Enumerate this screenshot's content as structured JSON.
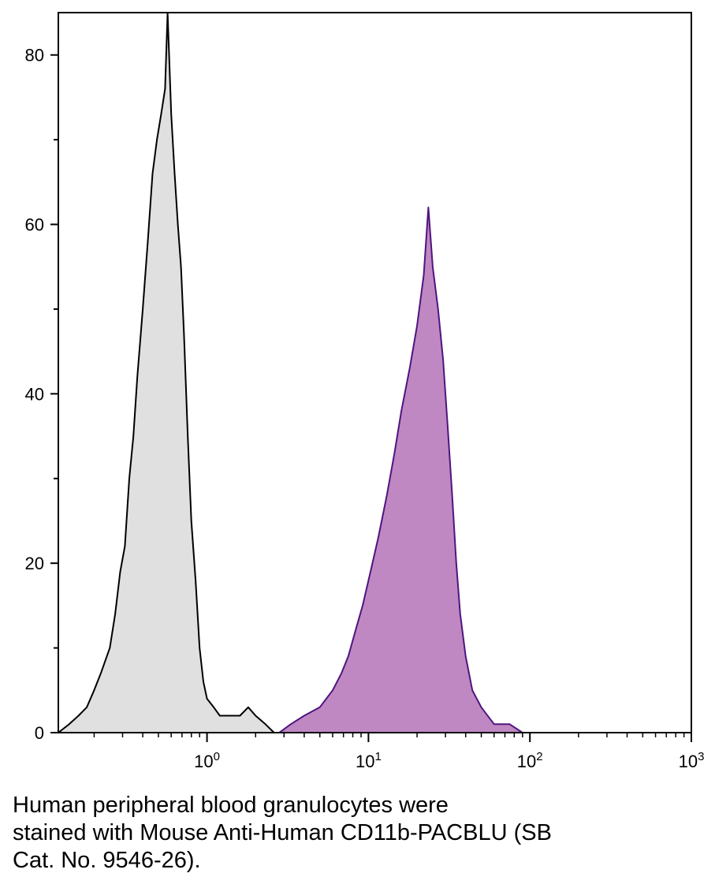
{
  "chart_data": {
    "type": "area",
    "title": "",
    "xlabel": "",
    "ylabel": "",
    "x_scale": "log",
    "xlim": [
      0.12,
      1000
    ],
    "ylim": [
      0,
      85
    ],
    "x_ticks": [
      {
        "value": 1,
        "base": "10",
        "exp": "0"
      },
      {
        "value": 10,
        "base": "10",
        "exp": "1"
      },
      {
        "value": 100,
        "base": "10",
        "exp": "2"
      },
      {
        "value": 1000,
        "base": "10",
        "exp": "3"
      }
    ],
    "y_ticks": [
      {
        "value": 0,
        "label": "0"
      },
      {
        "value": 20,
        "label": "20"
      },
      {
        "value": 40,
        "label": "40"
      },
      {
        "value": 60,
        "label": "60"
      },
      {
        "value": 80,
        "label": "80"
      }
    ],
    "y_minor_ticks": [
      10,
      30,
      50,
      70
    ],
    "grid": false,
    "legend": "none",
    "series": [
      {
        "fill": "#e0e0e0",
        "stroke": "#000000",
        "points": [
          [
            0.12,
            0
          ],
          [
            0.14,
            1
          ],
          [
            0.16,
            2
          ],
          [
            0.18,
            3
          ],
          [
            0.2,
            5
          ],
          [
            0.22,
            7
          ],
          [
            0.25,
            10
          ],
          [
            0.27,
            14
          ],
          [
            0.29,
            19
          ],
          [
            0.31,
            22
          ],
          [
            0.33,
            30
          ],
          [
            0.35,
            35
          ],
          [
            0.37,
            42
          ],
          [
            0.4,
            50
          ],
          [
            0.43,
            58
          ],
          [
            0.46,
            66
          ],
          [
            0.49,
            70
          ],
          [
            0.52,
            73
          ],
          [
            0.55,
            76
          ],
          [
            0.57,
            85
          ],
          [
            0.6,
            73
          ],
          [
            0.63,
            66
          ],
          [
            0.66,
            60
          ],
          [
            0.69,
            55
          ],
          [
            0.72,
            47
          ],
          [
            0.76,
            35
          ],
          [
            0.8,
            25
          ],
          [
            0.85,
            18
          ],
          [
            0.9,
            10
          ],
          [
            0.95,
            6
          ],
          [
            1.0,
            4
          ],
          [
            1.1,
            3
          ],
          [
            1.2,
            2
          ],
          [
            1.4,
            2
          ],
          [
            1.6,
            2
          ],
          [
            1.8,
            3
          ],
          [
            2.0,
            2
          ],
          [
            2.3,
            1
          ],
          [
            2.6,
            0
          ]
        ]
      },
      {
        "fill": "#c088c2",
        "stroke": "#4e1580",
        "points": [
          [
            2.8,
            0
          ],
          [
            3.3,
            1
          ],
          [
            4.0,
            2
          ],
          [
            5.0,
            3
          ],
          [
            6.0,
            5
          ],
          [
            6.8,
            7
          ],
          [
            7.5,
            9
          ],
          [
            8.3,
            12
          ],
          [
            9.2,
            15
          ],
          [
            10.3,
            19
          ],
          [
            11.5,
            23
          ],
          [
            13.0,
            28
          ],
          [
            14.5,
            33
          ],
          [
            16.0,
            38
          ],
          [
            18.0,
            43
          ],
          [
            20.0,
            48
          ],
          [
            22.0,
            54
          ],
          [
            23.5,
            62
          ],
          [
            25.0,
            55
          ],
          [
            27.0,
            50
          ],
          [
            29.0,
            44
          ],
          [
            31.0,
            36
          ],
          [
            33.0,
            28
          ],
          [
            35.0,
            20
          ],
          [
            37.0,
            14
          ],
          [
            40.0,
            9
          ],
          [
            44.0,
            5
          ],
          [
            50.0,
            3
          ],
          [
            60.0,
            1
          ],
          [
            75.0,
            1
          ],
          [
            90.0,
            0
          ]
        ]
      }
    ]
  },
  "caption": {
    "lines": [
      "Human peripheral blood granulocytes were",
      "stained with Mouse Anti-Human CD11b-PACBLU (SB",
      "Cat. No. 9546-26)."
    ]
  }
}
